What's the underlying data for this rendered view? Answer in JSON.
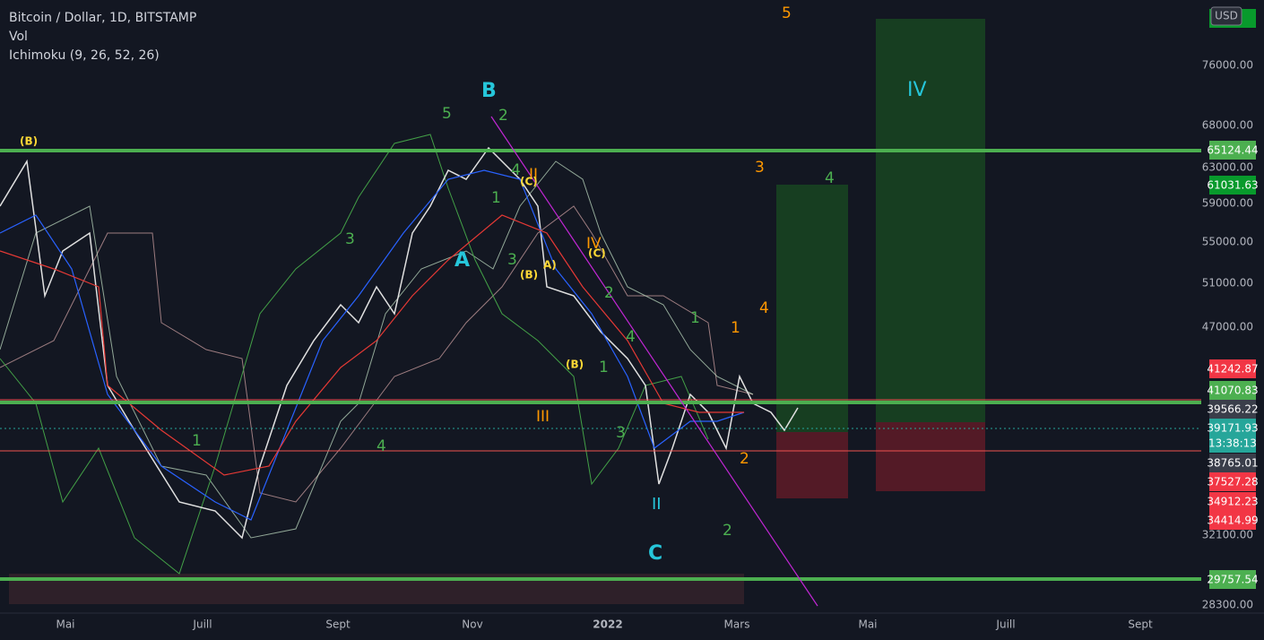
{
  "header": {
    "symbol": "Bitcoin / Dollar, 1D, BITSTAMP",
    "vol": "Vol",
    "ichimoku": "Ichimoku (9, 26, 52, 26)"
  },
  "currency": "USD",
  "price_axis": [
    "76000.00",
    "68000.00",
    "63000.00",
    "59000.00",
    "55000.00",
    "51000.00",
    "47000.00",
    "32100.00",
    "28300.00"
  ],
  "price_tags": [
    "65124.44",
    "61031.63",
    "41242.87",
    "41070.83",
    "39566.22",
    "39171.93",
    "38765.01",
    "37527.28",
    "34912.23",
    "34414.99",
    "29757.54"
  ],
  "countdown": "13:38:13",
  "time_axis": [
    "Mai",
    "Juill",
    "Sept",
    "Nov",
    "2022",
    "Mars",
    "Mai",
    "Juill",
    "Sept"
  ],
  "wave_labels": [
    "(B)",
    "5",
    "B",
    "2",
    "3",
    "A",
    "1",
    "4",
    "II",
    "(C)",
    "IV",
    "(C)",
    "3",
    "(B)",
    "A)",
    "2",
    "4",
    "(B)",
    "1",
    "III",
    "1",
    "4",
    "3",
    "II",
    "C",
    "2",
    "1",
    "1",
    "4",
    "3",
    "4",
    "2",
    "5",
    "IV"
  ]
}
